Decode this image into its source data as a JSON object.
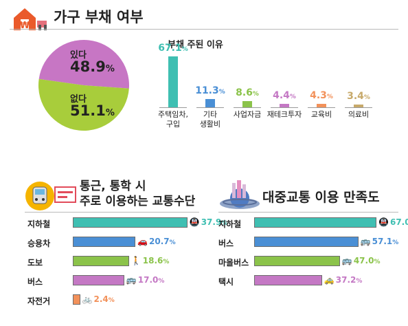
{
  "colors": {
    "pink": "#c776c4",
    "green": "#a8cd3b",
    "teal": "#3fbfb2",
    "blue": "#4a8fd5",
    "green2": "#8bc34a",
    "purple": "#c478c4",
    "orange": "#f2915a",
    "tan": "#c7a96a",
    "orange_icon": "#f08a3c"
  },
  "header": {
    "title": "가구 부채 여부",
    "icon": "house-won-icon"
  },
  "pie": {
    "title": "",
    "slices": [
      {
        "label": "있다",
        "value": 48.9,
        "color": "#c776c4"
      },
      {
        "label": "없다",
        "value": 51.1,
        "color": "#a8cd3b"
      }
    ]
  },
  "reasons": {
    "title": "부채 주된 이유",
    "items": [
      {
        "label_lines": [
          "주택임차,",
          "구입"
        ],
        "value": 67.1,
        "color": "#3fbfb2"
      },
      {
        "label_lines": [
          "기타",
          "생활비"
        ],
        "value": 11.3,
        "color": "#4a8fd5"
      },
      {
        "label_lines": [
          "사업자금"
        ],
        "value": 8.6,
        "color": "#8bc34a"
      },
      {
        "label_lines": [
          "재테크투자"
        ],
        "value": 4.4,
        "color": "#c478c4"
      },
      {
        "label_lines": [
          "교육비"
        ],
        "value": 4.3,
        "color": "#f2915a"
      },
      {
        "label_lines": [
          "의료비"
        ],
        "value": 3.4,
        "color": "#c7a96a"
      }
    ]
  },
  "commute": {
    "title_line1": "통근, 통학 시",
    "title_line2": "주로 이용하는 교통수단",
    "icon": "subway-train-icon",
    "items": [
      {
        "label": "지하철",
        "value": 37.9,
        "color": "#3fbfb2",
        "icon": "subway-icon",
        "glyph": "🚇"
      },
      {
        "label": "승용차",
        "value": 20.7,
        "color": "#4a8fd5",
        "icon": "car-icon",
        "glyph": "🚗"
      },
      {
        "label": "도보",
        "value": 18.6,
        "color": "#8bc34a",
        "icon": "walking-icon",
        "glyph": "🚶"
      },
      {
        "label": "버스",
        "value": 17.0,
        "color": "#c478c4",
        "icon": "bus-icon",
        "glyph": "🚌"
      },
      {
        "label": "자전거",
        "value": 2.4,
        "color": "#f2915a",
        "icon": "bicycle-icon",
        "glyph": "🚲"
      }
    ]
  },
  "satisfaction": {
    "title": "대중교통 이용 만족도",
    "icon": "city-globe-icon",
    "items": [
      {
        "label": "지하철",
        "value": 67.0,
        "color": "#3fbfb2",
        "icon": "subway-icon",
        "glyph": "🚇"
      },
      {
        "label": "버스",
        "value": 57.1,
        "color": "#4a8fd5",
        "icon": "bus-icon",
        "glyph": "🚌"
      },
      {
        "label": "마을버스",
        "value": 47.0,
        "color": "#8bc34a",
        "icon": "minibus-icon",
        "glyph": "🚌"
      },
      {
        "label": "택시",
        "value": 37.2,
        "color": "#c478c4",
        "icon": "taxi-icon",
        "glyph": "🚕"
      }
    ]
  },
  "chart_data": [
    {
      "type": "pie",
      "title": "가구 부채 여부",
      "labels": [
        "있다",
        "없다"
      ],
      "values": [
        48.9,
        51.1
      ]
    },
    {
      "type": "bar",
      "title": "부채 주된 이유",
      "categories": [
        "주택임차, 구입",
        "기타 생활비",
        "사업자금",
        "재테크투자",
        "교육비",
        "의료비"
      ],
      "values": [
        67.1,
        11.3,
        8.6,
        4.4,
        4.3,
        3.4
      ]
    },
    {
      "type": "bar",
      "title": "통근, 통학 시 주로 이용하는 교통수단",
      "categories": [
        "지하철",
        "승용차",
        "도보",
        "버스",
        "자전거"
      ],
      "values": [
        37.9,
        20.7,
        18.6,
        17.0,
        2.4
      ]
    },
    {
      "type": "bar",
      "title": "대중교통 이용 만족도",
      "categories": [
        "지하철",
        "버스",
        "마을버스",
        "택시"
      ],
      "values": [
        67.0,
        57.1,
        47.0,
        37.2
      ]
    }
  ]
}
